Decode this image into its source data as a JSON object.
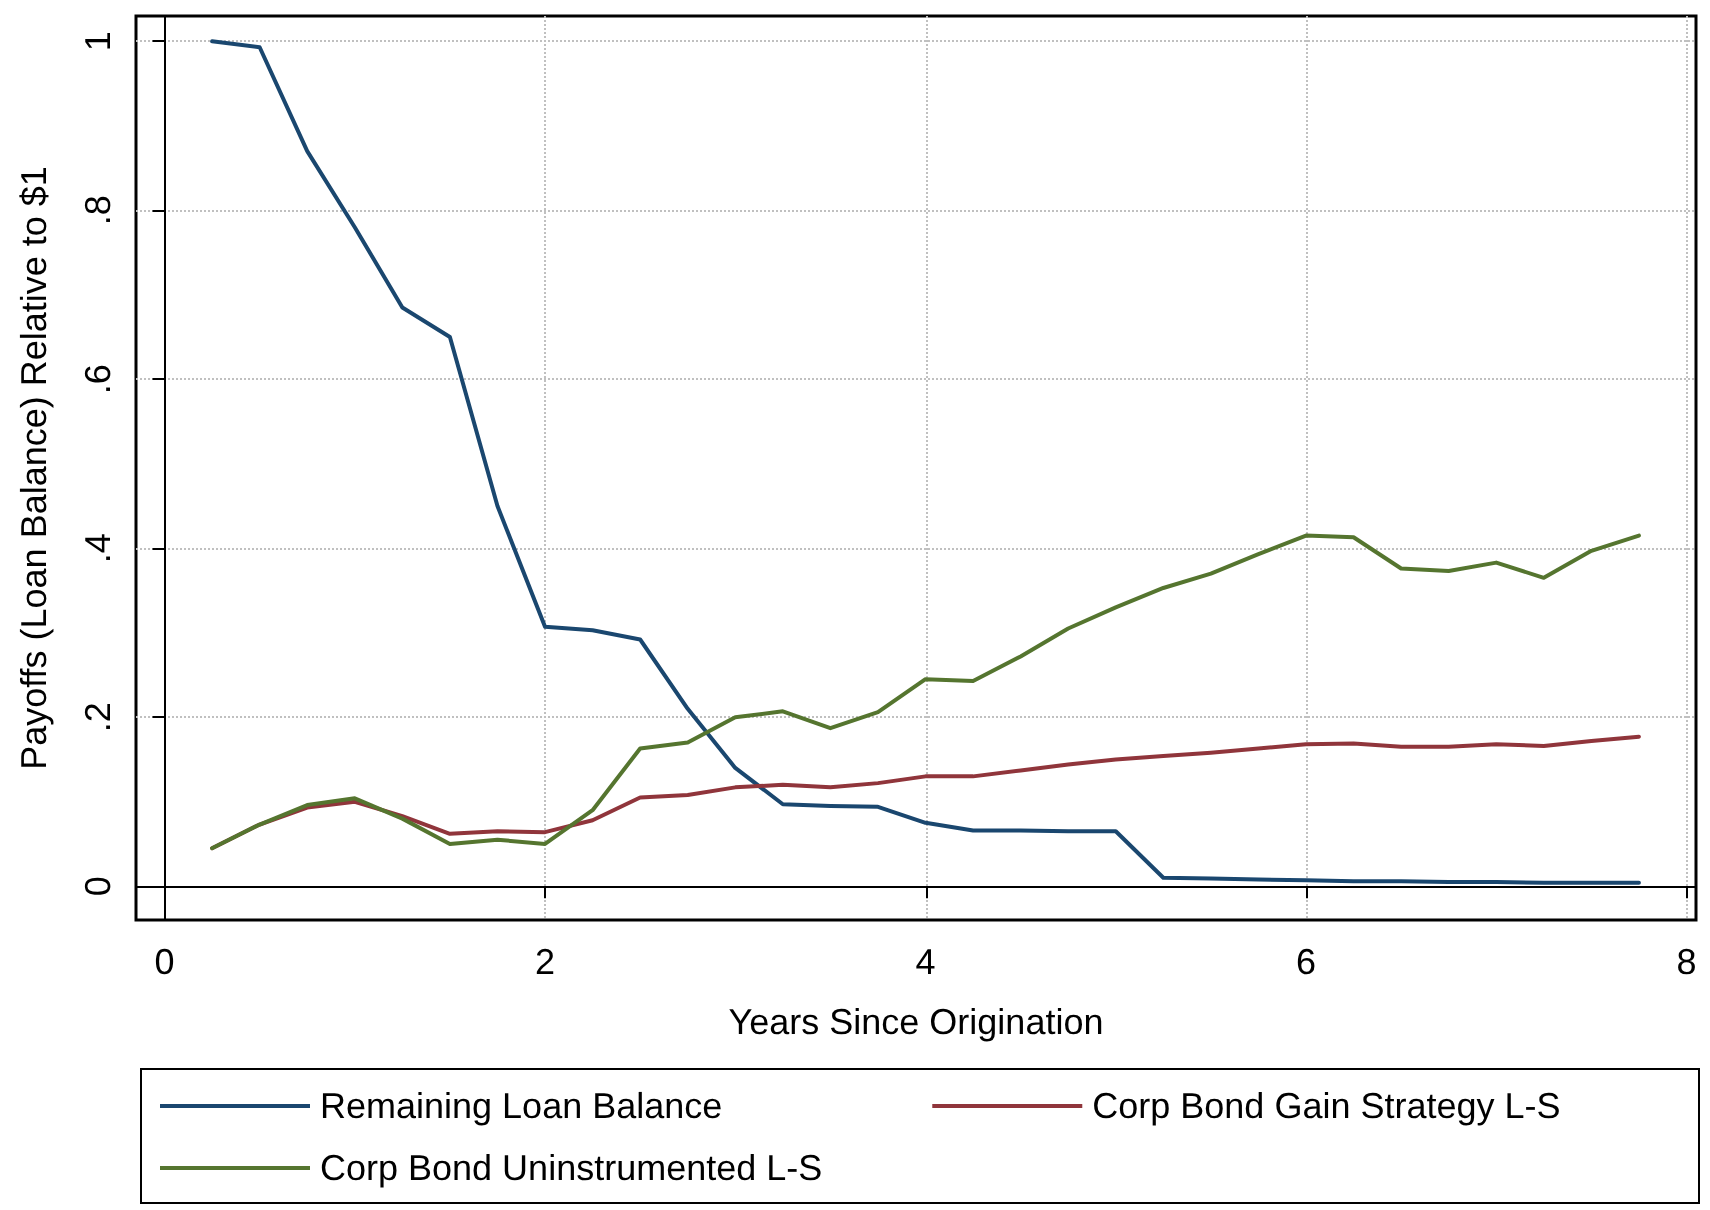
{
  "chart_data": {
    "type": "line",
    "xlabel": "Years Since Origination",
    "ylabel": "Payoffs (Loan Balance) Relative to $1",
    "x": [
      0.25,
      0.5,
      0.75,
      1,
      1.25,
      1.5,
      1.75,
      2,
      2.25,
      2.5,
      2.75,
      3,
      3.25,
      3.5,
      3.75,
      4,
      4.25,
      4.5,
      4.75,
      5,
      5.25,
      5.5,
      5.75,
      6,
      6.25,
      6.5,
      6.75,
      7,
      7.25,
      7.5,
      7.75
    ],
    "series": [
      {
        "name": "Remaining Loan Balance",
        "color": "#1a476f",
        "values": [
          1.0,
          0.993,
          0.87,
          0.78,
          0.685,
          0.65,
          0.45,
          0.307,
          0.303,
          0.292,
          0.21,
          0.14,
          0.097,
          0.095,
          0.094,
          0.075,
          0.066,
          0.066,
          0.065,
          0.065,
          0.01,
          0.009,
          0.008,
          0.007,
          0.006,
          0.006,
          0.005,
          0.005,
          0.004,
          0.004,
          0.004
        ]
      },
      {
        "name": "Corp Bond Gain Strategy L-S",
        "color": "#90353b",
        "values": [
          0.045,
          0.073,
          0.093,
          0.1,
          0.083,
          0.062,
          0.065,
          0.064,
          0.078,
          0.105,
          0.108,
          0.117,
          0.12,
          0.117,
          0.122,
          0.13,
          0.13,
          0.137,
          0.144,
          0.15,
          0.154,
          0.158,
          0.163,
          0.168,
          0.169,
          0.165,
          0.165,
          0.168,
          0.166,
          0.172,
          0.177
        ]
      },
      {
        "name": "Corp Bond Uninstrumented L-S",
        "color": "#55752f",
        "values": [
          0.045,
          0.073,
          0.096,
          0.104,
          0.08,
          0.05,
          0.055,
          0.05,
          0.09,
          0.163,
          0.17,
          0.2,
          0.207,
          0.187,
          0.206,
          0.245,
          0.243,
          0.272,
          0.305,
          0.33,
          0.353,
          0.37,
          0.393,
          0.415,
          0.413,
          0.376,
          0.373,
          0.383,
          0.365,
          0.397,
          0.415
        ]
      }
    ],
    "xlim": [
      -0.15,
      8.05
    ],
    "xticks": [
      0,
      2,
      4,
      6,
      8
    ],
    "ylim": [
      -0.04,
      1.03
    ],
    "yticks": [
      {
        "value": 0,
        "label": "0"
      },
      {
        "value": 0.2,
        "label": ".2"
      },
      {
        "value": 0.4,
        "label": ".4"
      },
      {
        "value": 0.6,
        "label": ".6"
      },
      {
        "value": 0.8,
        "label": ".8"
      },
      {
        "value": 1,
        "label": "1"
      }
    ],
    "grid": true,
    "legend": "bottom",
    "marker": "none",
    "line_style": "solid"
  }
}
